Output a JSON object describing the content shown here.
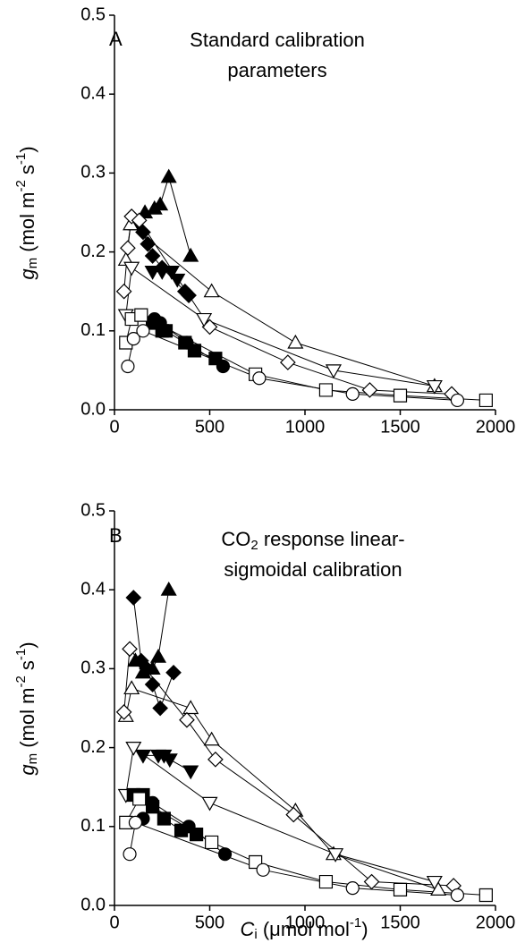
{
  "chart_data": [
    {
      "type": "line",
      "panel_label": "A",
      "annotation": [
        [
          "Standard calibration"
        ],
        [
          "parameters"
        ]
      ],
      "y_label": [
        "g",
        "m",
        " (mol m",
        "-2",
        " s",
        "-1",
        ")"
      ],
      "xlim": [
        0,
        2000
      ],
      "xticks": [
        0,
        500,
        1000,
        1500,
        2000
      ],
      "ylim": [
        0,
        0.5
      ],
      "yticks": [
        {
          "value": 0,
          "label": "0.0"
        },
        0.1,
        0.2,
        0.3,
        0.4,
        0.5
      ],
      "series": [
        {
          "marker": "triangle-up",
          "filled": true,
          "color": "#000000",
          "x": [
            110,
            160,
            210,
            240,
            285,
            400
          ],
          "values": [
            0.235,
            0.25,
            0.255,
            0.26,
            0.295,
            0.195
          ]
        },
        {
          "marker": "triangle-up",
          "filled": false,
          "color": "#000000",
          "x": [
            60,
            85,
            510,
            950,
            1680
          ],
          "values": [
            0.19,
            0.235,
            0.15,
            0.085,
            0.03
          ]
        },
        {
          "marker": "diamond",
          "filled": true,
          "color": "#000000",
          "x": [
            150,
            175,
            200,
            250,
            370,
            390
          ],
          "values": [
            0.225,
            0.21,
            0.195,
            0.18,
            0.15,
            0.145
          ]
        },
        {
          "marker": "diamond",
          "filled": false,
          "color": "#000000",
          "x": [
            50,
            70,
            90,
            130,
            500,
            910,
            1340,
            1770
          ],
          "values": [
            0.15,
            0.205,
            0.245,
            0.24,
            0.105,
            0.06,
            0.025,
            0.02
          ]
        },
        {
          "marker": "triangle-down",
          "filled": true,
          "color": "#000000",
          "x": [
            200,
            250,
            300,
            330
          ],
          "values": [
            0.175,
            0.175,
            0.175,
            0.165
          ]
        },
        {
          "marker": "triangle-down",
          "filled": false,
          "color": "#000000",
          "x": [
            60,
            90,
            470,
            1150,
            1680
          ],
          "values": [
            0.12,
            0.18,
            0.115,
            0.05,
            0.03
          ]
        },
        {
          "marker": "square",
          "filled": true,
          "color": "#000000",
          "x": [
            200,
            250,
            270,
            370,
            420,
            530
          ],
          "values": [
            0.11,
            0.1,
            0.1,
            0.085,
            0.075,
            0.065
          ]
        },
        {
          "marker": "square",
          "filled": false,
          "color": "#000000",
          "x": [
            60,
            90,
            140,
            740,
            1110,
            1500,
            1950
          ],
          "values": [
            0.085,
            0.115,
            0.12,
            0.045,
            0.025,
            0.018,
            0.012
          ]
        },
        {
          "marker": "circle",
          "filled": true,
          "color": "#000000",
          "x": [
            210,
            240,
            380,
            570
          ],
          "values": [
            0.115,
            0.11,
            0.085,
            0.055
          ]
        },
        {
          "marker": "circle",
          "filled": false,
          "color": "#000000",
          "x": [
            70,
            100,
            150,
            760,
            1250,
            1800
          ],
          "values": [
            0.055,
            0.09,
            0.1,
            0.04,
            0.02,
            0.012
          ]
        }
      ]
    },
    {
      "type": "line",
      "panel_label": "B",
      "annotation": [
        [
          "CO",
          "2",
          " response linear-"
        ],
        [
          "sigmoidal calibration"
        ]
      ],
      "y_label": [
        "g",
        "m",
        " (mol m",
        "-2",
        " s",
        "-1",
        ")"
      ],
      "x_label": [
        "C",
        "i",
        " (μmol mol",
        "-1",
        ")"
      ],
      "xlim": [
        0,
        2000
      ],
      "xticks": [
        0,
        500,
        1000,
        1500,
        2000
      ],
      "ylim": [
        0,
        0.5
      ],
      "yticks": [
        {
          "value": 0,
          "label": "0.0"
        },
        0.1,
        0.2,
        0.3,
        0.4,
        0.5
      ],
      "series": [
        {
          "marker": "triangle-up",
          "filled": true,
          "color": "#000000",
          "x": [
            110,
            150,
            200,
            230,
            285
          ],
          "values": [
            0.31,
            0.295,
            0.3,
            0.315,
            0.4
          ]
        },
        {
          "marker": "triangle-up",
          "filled": false,
          "color": "#000000",
          "x": [
            60,
            90,
            400,
            510,
            950,
            1150,
            1700
          ],
          "values": [
            0.24,
            0.275,
            0.25,
            0.21,
            0.12,
            0.065,
            0.02
          ]
        },
        {
          "marker": "diamond",
          "filled": true,
          "color": "#000000",
          "x": [
            100,
            140,
            170,
            200,
            240,
            310
          ],
          "values": [
            0.39,
            0.31,
            0.3,
            0.28,
            0.25,
            0.295
          ]
        },
        {
          "marker": "diamond",
          "filled": false,
          "color": "#000000",
          "x": [
            50,
            80,
            380,
            530,
            940,
            1350,
            1780
          ],
          "values": [
            0.245,
            0.325,
            0.235,
            0.185,
            0.115,
            0.03,
            0.025
          ]
        },
        {
          "marker": "triangle-down",
          "filled": true,
          "color": "#000000",
          "x": [
            150,
            230,
            260,
            290,
            400
          ],
          "values": [
            0.19,
            0.19,
            0.19,
            0.185,
            0.17
          ]
        },
        {
          "marker": "triangle-down",
          "filled": false,
          "color": "#000000",
          "x": [
            60,
            100,
            500,
            1160,
            1680
          ],
          "values": [
            0.14,
            0.2,
            0.13,
            0.065,
            0.03
          ]
        },
        {
          "marker": "square",
          "filled": true,
          "color": "#000000",
          "x": [
            100,
            150,
            200,
            260,
            350,
            430
          ],
          "values": [
            0.14,
            0.14,
            0.125,
            0.11,
            0.095,
            0.09
          ]
        },
        {
          "marker": "square",
          "filled": false,
          "color": "#000000",
          "x": [
            60,
            130,
            510,
            740,
            1110,
            1500,
            1950
          ],
          "values": [
            0.105,
            0.135,
            0.08,
            0.055,
            0.03,
            0.02,
            0.013
          ]
        },
        {
          "marker": "circle",
          "filled": true,
          "color": "#000000",
          "x": [
            150,
            200,
            390,
            580
          ],
          "values": [
            0.11,
            0.13,
            0.1,
            0.065
          ]
        },
        {
          "marker": "circle",
          "filled": false,
          "color": "#000000",
          "x": [
            80,
            110,
            780,
            1250,
            1800
          ],
          "values": [
            0.065,
            0.105,
            0.045,
            0.022,
            0.013
          ]
        }
      ]
    }
  ]
}
